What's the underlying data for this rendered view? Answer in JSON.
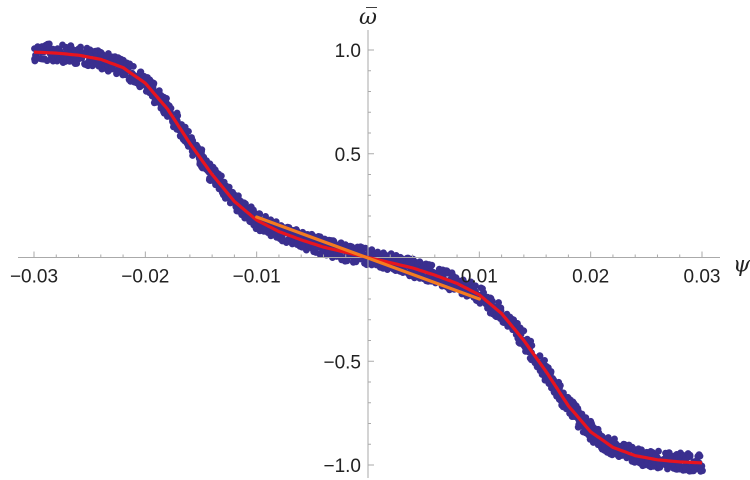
{
  "chart_data": {
    "type": "scatter",
    "xlabel": "ψ",
    "ylabel": "ω̅",
    "xlim": [
      -0.03,
      0.03
    ],
    "ylim": [
      -1.0,
      1.0
    ],
    "x_ticks": [
      -0.03,
      -0.02,
      -0.01,
      0.01,
      0.02,
      0.03
    ],
    "x_tick_labels": [
      "−0.03",
      "−0.02",
      "−0.01",
      "0.01",
      "0.02",
      "0.03"
    ],
    "y_ticks": [
      -1.0,
      -0.5,
      0.5,
      1.0
    ],
    "y_tick_labels": [
      "−1.0",
      "−0.5",
      "0.5",
      "1.0"
    ],
    "grid": false,
    "series": [
      {
        "kind": "scatter",
        "color": "#3a2f8f",
        "x": [
          -0.03,
          -0.028,
          -0.026,
          -0.024,
          -0.022,
          -0.02,
          -0.018,
          -0.016,
          -0.014,
          -0.012,
          -0.01,
          -0.008,
          -0.006,
          -0.004,
          -0.002,
          0.0,
          0.002,
          0.004,
          0.006,
          0.008,
          0.01,
          0.012,
          0.014,
          0.016,
          0.018,
          0.02,
          0.022,
          0.024,
          0.026,
          0.028,
          0.03
        ],
        "y": [
          0.99,
          0.985,
          0.975,
          0.955,
          0.915,
          0.84,
          0.715,
          0.55,
          0.4,
          0.27,
          0.18,
          0.125,
          0.085,
          0.05,
          0.025,
          0.0,
          -0.025,
          -0.05,
          -0.085,
          -0.125,
          -0.18,
          -0.27,
          -0.4,
          -0.55,
          -0.715,
          -0.84,
          -0.915,
          -0.955,
          -0.975,
          -0.985,
          -0.99
        ]
      },
      {
        "kind": "line",
        "color": "#e8141e",
        "x": [
          -0.03,
          -0.028,
          -0.026,
          -0.024,
          -0.022,
          -0.02,
          -0.018,
          -0.016,
          -0.014,
          -0.012,
          -0.01,
          -0.008,
          -0.006,
          -0.004,
          -0.002,
          0.0,
          0.002,
          0.004,
          0.006,
          0.008,
          0.01,
          0.012,
          0.014,
          0.016,
          0.018,
          0.02,
          0.022,
          0.024,
          0.026,
          0.028,
          0.03
        ],
        "y": [
          0.99,
          0.985,
          0.975,
          0.955,
          0.915,
          0.84,
          0.715,
          0.55,
          0.4,
          0.27,
          0.18,
          0.125,
          0.085,
          0.05,
          0.025,
          0.0,
          -0.025,
          -0.05,
          -0.085,
          -0.125,
          -0.18,
          -0.27,
          -0.4,
          -0.55,
          -0.715,
          -0.84,
          -0.915,
          -0.955,
          -0.975,
          -0.985,
          -0.99
        ]
      },
      {
        "kind": "line",
        "color": "#f57b1f",
        "x": [
          -0.01,
          0.01
        ],
        "y": [
          0.195,
          -0.2
        ]
      }
    ]
  }
}
